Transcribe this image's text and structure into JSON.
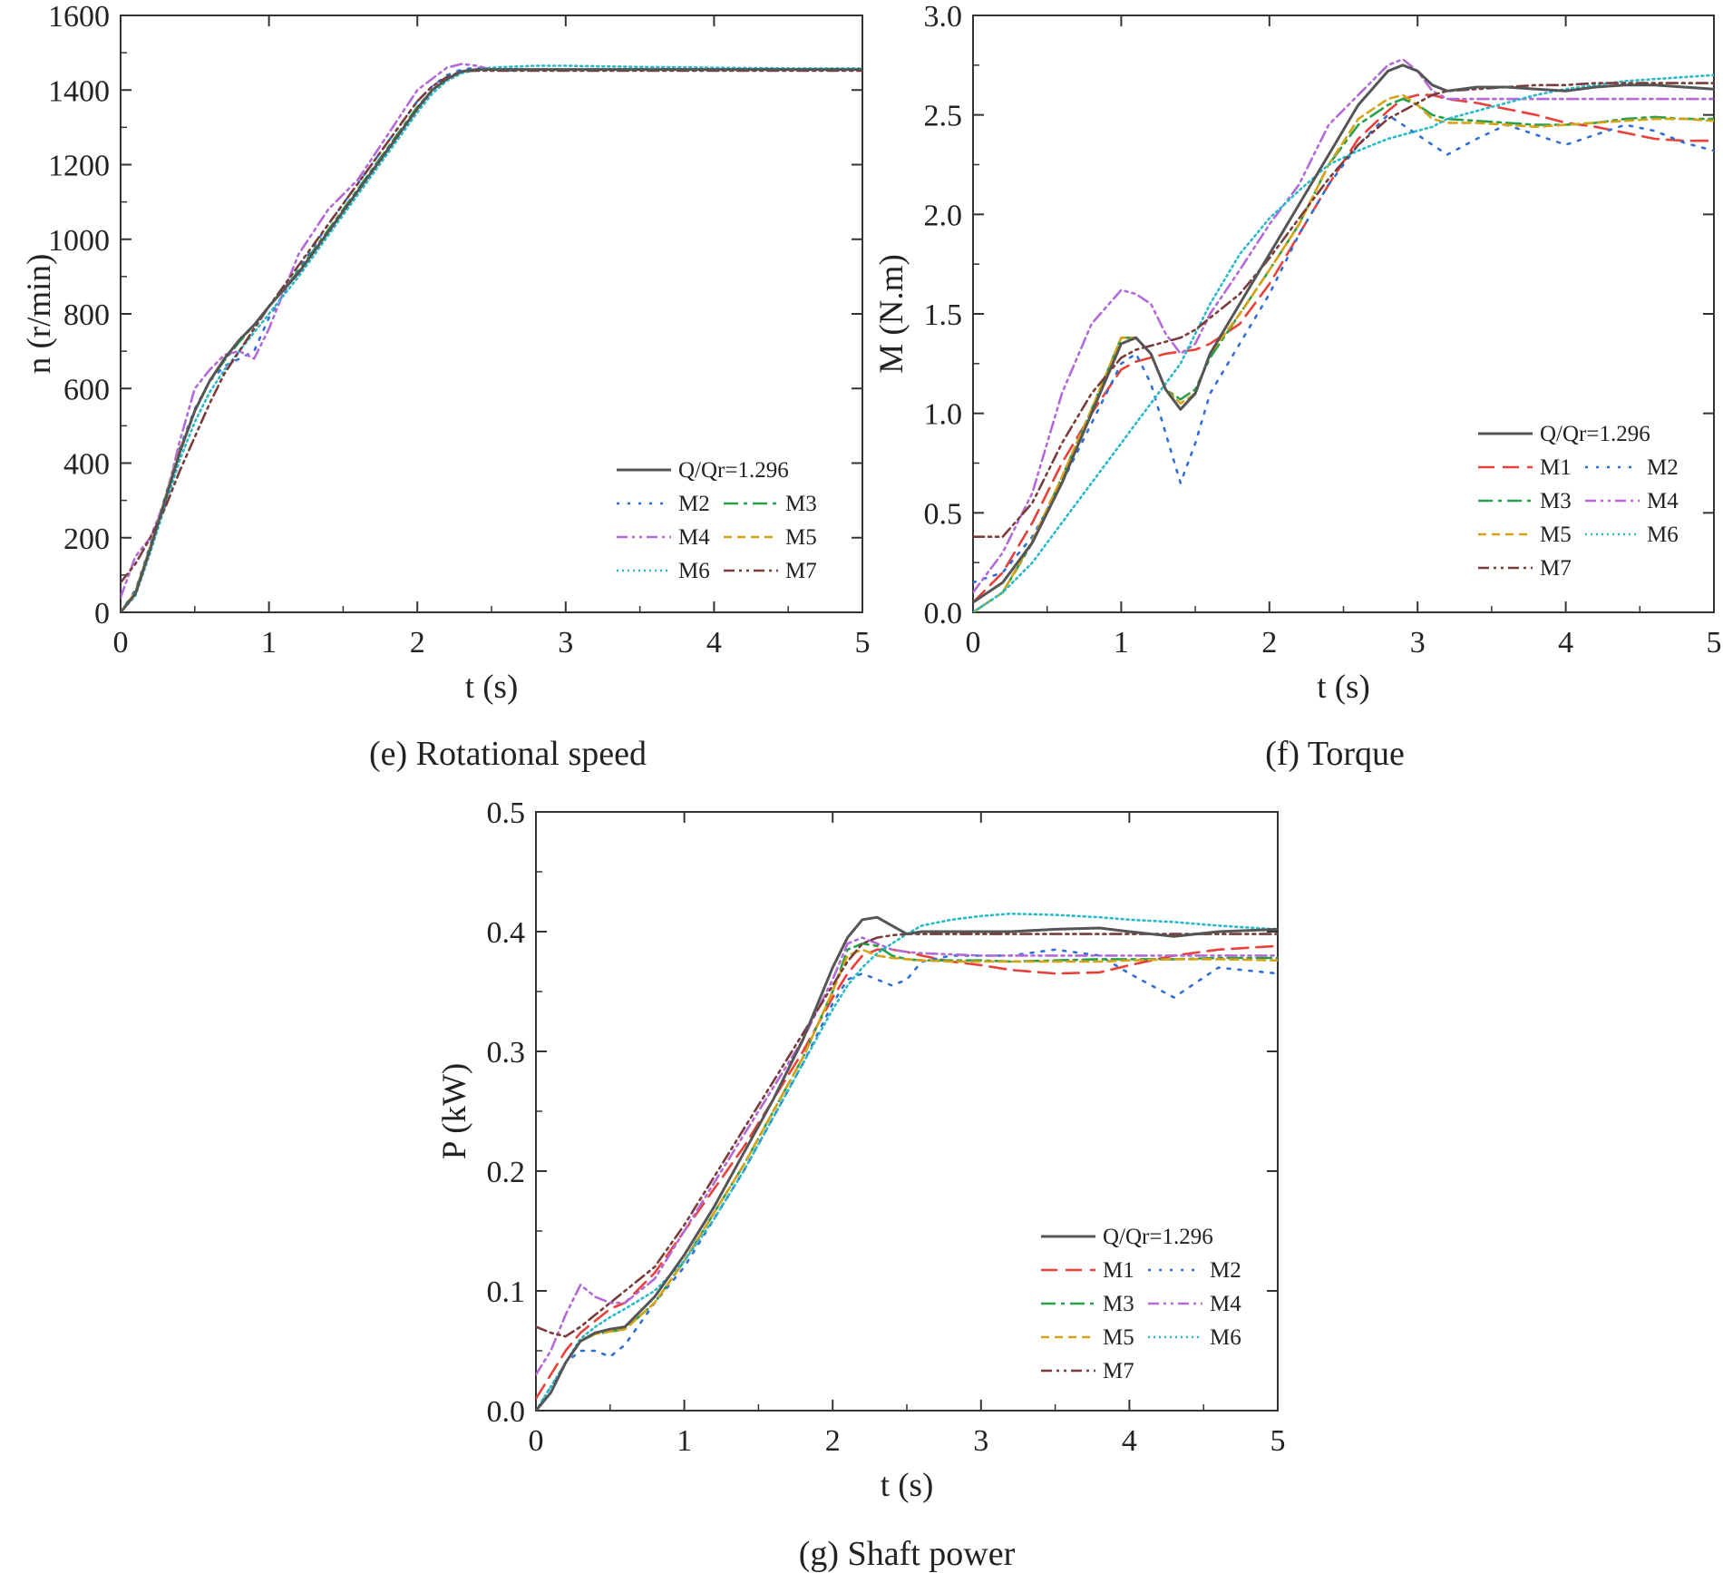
{
  "figure": {
    "captions": [
      "(e) Rotational speed",
      "(f) Torque",
      "(g) Shaft power"
    ]
  },
  "series_styles": {
    "base": {
      "label": "Q/Qr=1.296",
      "color": "#555555",
      "dash": "solid"
    },
    "M1": {
      "label": "M1",
      "color": "#e8403a",
      "dash": "long-dash"
    },
    "M2": {
      "label": "M2",
      "color": "#2f6fd6",
      "dash": "dot"
    },
    "M3": {
      "label": "M3",
      "color": "#27a04a",
      "dash": "dash-dot"
    },
    "M4": {
      "label": "M4",
      "color": "#b36ad8",
      "dash": "dash-dot-dot"
    },
    "M5": {
      "label": "M5",
      "color": "#d6a317",
      "dash": "short-dash"
    },
    "M6": {
      "label": "M6",
      "color": "#2ab9c9",
      "dash": "fine-dot"
    },
    "M7": {
      "label": "M7",
      "color": "#7a3b3b",
      "dash": "dash-dot-dot"
    }
  },
  "chart_data": [
    {
      "id": "speed",
      "type": "line",
      "caption": "(e) Rotational speed",
      "xlabel": "t (s)",
      "ylabel": "n (r/min)",
      "xlim": [
        0,
        5
      ],
      "ylim": [
        0,
        1600
      ],
      "xticks": [
        0,
        1,
        2,
        3,
        4,
        5
      ],
      "yticks": [
        0,
        200,
        400,
        600,
        800,
        1000,
        1200,
        1400,
        1600
      ],
      "legend_position": "bottom-right",
      "legend": [
        "base",
        "M2",
        "M3",
        "M4",
        "M5",
        "M6",
        "M7"
      ],
      "x": [
        0,
        0.1,
        0.2,
        0.3,
        0.4,
        0.5,
        0.6,
        0.7,
        0.8,
        0.9,
        1.0,
        1.2,
        1.4,
        1.6,
        1.8,
        2.0,
        2.1,
        2.2,
        2.3,
        2.4,
        2.5,
        2.6,
        2.8,
        3.0,
        3.5,
        4.0,
        4.5,
        5.0
      ],
      "series": [
        {
          "key": "base",
          "name": "Q/Qr=1.296",
          "values": [
            0,
            50,
            170,
            300,
            430,
            540,
            620,
            680,
            730,
            770,
            820,
            910,
            1020,
            1130,
            1240,
            1350,
            1400,
            1430,
            1450,
            1455,
            1455,
            1455,
            1455,
            1455,
            1455,
            1455,
            1455,
            1455
          ]
        },
        {
          "key": "M2",
          "name": "M2",
          "values": [
            0,
            60,
            180,
            310,
            440,
            545,
            620,
            660,
            680,
            700,
            790,
            920,
            1040,
            1150,
            1260,
            1370,
            1410,
            1440,
            1455,
            1460,
            1455,
            1452,
            1455,
            1455,
            1455,
            1455,
            1455,
            1455
          ]
        },
        {
          "key": "M3",
          "name": "M3",
          "values": [
            0,
            55,
            175,
            305,
            435,
            540,
            620,
            675,
            725,
            770,
            820,
            915,
            1025,
            1135,
            1245,
            1355,
            1400,
            1430,
            1450,
            1455,
            1455,
            1455,
            1455,
            1455,
            1455,
            1455,
            1455,
            1455
          ]
        },
        {
          "key": "M4",
          "name": "M4",
          "values": [
            40,
            150,
            200,
            300,
            460,
            600,
            650,
            690,
            700,
            680,
            760,
            960,
            1080,
            1160,
            1280,
            1400,
            1430,
            1460,
            1470,
            1465,
            1455,
            1455,
            1455,
            1455,
            1455,
            1455,
            1455,
            1455
          ]
        },
        {
          "key": "M5",
          "name": "M5",
          "values": [
            0,
            55,
            175,
            305,
            435,
            540,
            620,
            680,
            730,
            770,
            820,
            910,
            1020,
            1130,
            1240,
            1350,
            1400,
            1430,
            1450,
            1455,
            1455,
            1455,
            1455,
            1455,
            1455,
            1455,
            1455,
            1455
          ]
        },
        {
          "key": "M6",
          "name": "M6",
          "values": [
            0,
            45,
            160,
            285,
            410,
            510,
            590,
            650,
            700,
            750,
            800,
            900,
            1010,
            1120,
            1230,
            1340,
            1390,
            1425,
            1445,
            1455,
            1460,
            1462,
            1465,
            1465,
            1462,
            1460,
            1458,
            1458
          ]
        },
        {
          "key": "M7",
          "name": "M7",
          "values": [
            80,
            130,
            200,
            280,
            380,
            470,
            560,
            640,
            700,
            760,
            820,
            930,
            1040,
            1150,
            1260,
            1370,
            1410,
            1435,
            1450,
            1452,
            1452,
            1452,
            1452,
            1452,
            1452,
            1452,
            1452,
            1452
          ]
        }
      ]
    },
    {
      "id": "torque",
      "type": "line",
      "caption": "(f) Torque",
      "xlabel": "t (s)",
      "ylabel": "M (N.m)",
      "xlim": [
        0,
        5
      ],
      "ylim": [
        0,
        3.0
      ],
      "xticks": [
        0,
        1,
        2,
        3,
        4,
        5
      ],
      "yticks": [
        0.0,
        0.5,
        1.0,
        1.5,
        2.0,
        2.5,
        3.0
      ],
      "legend_position": "right",
      "legend": [
        "base",
        "M1",
        "M2",
        "M3",
        "M4",
        "M5",
        "M6",
        "M7"
      ],
      "x": [
        0,
        0.2,
        0.4,
        0.6,
        0.8,
        1.0,
        1.1,
        1.2,
        1.3,
        1.4,
        1.5,
        1.6,
        1.8,
        2.0,
        2.2,
        2.4,
        2.6,
        2.8,
        2.9,
        3.0,
        3.1,
        3.2,
        3.4,
        3.6,
        3.8,
        4.0,
        4.2,
        4.4,
        4.6,
        4.8,
        5.0
      ],
      "series": [
        {
          "key": "base",
          "name": "Q/Qr=1.296",
          "values": [
            0.05,
            0.15,
            0.35,
            0.65,
            1.0,
            1.35,
            1.38,
            1.3,
            1.12,
            1.02,
            1.1,
            1.3,
            1.55,
            1.8,
            2.05,
            2.3,
            2.55,
            2.72,
            2.75,
            2.72,
            2.65,
            2.62,
            2.64,
            2.64,
            2.63,
            2.62,
            2.64,
            2.65,
            2.65,
            2.64,
            2.63
          ]
        },
        {
          "key": "M1",
          "name": "M1",
          "values": [
            0.05,
            0.2,
            0.45,
            0.75,
            1.0,
            1.22,
            1.26,
            1.28,
            1.3,
            1.31,
            1.32,
            1.35,
            1.45,
            1.65,
            1.9,
            2.15,
            2.38,
            2.52,
            2.58,
            2.6,
            2.6,
            2.58,
            2.56,
            2.53,
            2.5,
            2.46,
            2.44,
            2.41,
            2.38,
            2.37,
            2.37
          ]
        },
        {
          "key": "M2",
          "name": "M2",
          "values": [
            0.15,
            0.2,
            0.38,
            0.65,
            0.95,
            1.25,
            1.3,
            1.15,
            0.9,
            0.65,
            0.85,
            1.1,
            1.35,
            1.6,
            1.9,
            2.15,
            2.35,
            2.5,
            2.45,
            2.4,
            2.35,
            2.3,
            2.38,
            2.45,
            2.4,
            2.35,
            2.4,
            2.45,
            2.42,
            2.36,
            2.32
          ]
        },
        {
          "key": "M3",
          "name": "M3",
          "values": [
            0.0,
            0.1,
            0.35,
            0.68,
            1.02,
            1.38,
            1.38,
            1.3,
            1.12,
            1.07,
            1.12,
            1.28,
            1.5,
            1.72,
            1.95,
            2.25,
            2.45,
            2.55,
            2.58,
            2.55,
            2.5,
            2.48,
            2.47,
            2.46,
            2.45,
            2.45,
            2.46,
            2.48,
            2.49,
            2.48,
            2.48
          ]
        },
        {
          "key": "M4",
          "name": "M4",
          "values": [
            0.1,
            0.3,
            0.6,
            1.1,
            1.45,
            1.62,
            1.6,
            1.55,
            1.4,
            1.3,
            1.35,
            1.5,
            1.72,
            1.95,
            2.15,
            2.45,
            2.6,
            2.75,
            2.78,
            2.72,
            2.62,
            2.58,
            2.58,
            2.58,
            2.58,
            2.58,
            2.58,
            2.58,
            2.58,
            2.58,
            2.58
          ]
        },
        {
          "key": "M5",
          "name": "M5",
          "values": [
            0.0,
            0.1,
            0.36,
            0.68,
            1.02,
            1.38,
            1.38,
            1.3,
            1.12,
            1.05,
            1.1,
            1.3,
            1.5,
            1.72,
            1.95,
            2.25,
            2.48,
            2.58,
            2.6,
            2.55,
            2.48,
            2.46,
            2.46,
            2.45,
            2.44,
            2.45,
            2.46,
            2.47,
            2.48,
            2.48,
            2.47
          ]
        },
        {
          "key": "M6",
          "name": "M6",
          "values": [
            0.0,
            0.1,
            0.25,
            0.45,
            0.65,
            0.85,
            0.95,
            1.05,
            1.15,
            1.25,
            1.4,
            1.55,
            1.8,
            1.98,
            2.12,
            2.25,
            2.32,
            2.38,
            2.4,
            2.42,
            2.44,
            2.48,
            2.52,
            2.56,
            2.6,
            2.63,
            2.65,
            2.67,
            2.68,
            2.69,
            2.7
          ]
        },
        {
          "key": "M7",
          "name": "M7",
          "values": [
            0.38,
            0.38,
            0.55,
            0.85,
            1.1,
            1.28,
            1.32,
            1.34,
            1.36,
            1.38,
            1.42,
            1.48,
            1.6,
            1.78,
            1.98,
            2.18,
            2.35,
            2.48,
            2.52,
            2.56,
            2.6,
            2.62,
            2.63,
            2.64,
            2.65,
            2.65,
            2.66,
            2.66,
            2.66,
            2.66,
            2.66
          ]
        }
      ]
    },
    {
      "id": "power",
      "type": "line",
      "caption": "(g) Shaft power",
      "xlabel": "t (s)",
      "ylabel": "P (kW)",
      "xlim": [
        0,
        5
      ],
      "ylim": [
        0,
        0.5
      ],
      "xticks": [
        0,
        1,
        2,
        3,
        4,
        5
      ],
      "yticks": [
        0.0,
        0.1,
        0.2,
        0.3,
        0.4,
        0.5
      ],
      "legend_position": "bottom-right",
      "legend": [
        "base",
        "M1",
        "M2",
        "M3",
        "M4",
        "M5",
        "M6",
        "M7"
      ],
      "x": [
        0,
        0.1,
        0.2,
        0.3,
        0.4,
        0.5,
        0.6,
        0.8,
        1.0,
        1.2,
        1.4,
        1.6,
        1.8,
        2.0,
        2.1,
        2.2,
        2.3,
        2.4,
        2.5,
        2.6,
        2.8,
        3.0,
        3.2,
        3.5,
        3.8,
        4.0,
        4.3,
        4.6,
        5.0
      ],
      "series": [
        {
          "key": "base",
          "name": "Q/Qr=1.296",
          "values": [
            0.0,
            0.015,
            0.04,
            0.058,
            0.065,
            0.068,
            0.07,
            0.095,
            0.13,
            0.17,
            0.215,
            0.26,
            0.31,
            0.37,
            0.395,
            0.41,
            0.412,
            0.405,
            0.398,
            0.4,
            0.4,
            0.4,
            0.4,
            0.402,
            0.403,
            0.4,
            0.396,
            0.4,
            0.402
          ]
        },
        {
          "key": "M1",
          "name": "M1",
          "values": [
            0.01,
            0.03,
            0.05,
            0.065,
            0.075,
            0.085,
            0.09,
            0.115,
            0.15,
            0.185,
            0.22,
            0.26,
            0.3,
            0.345,
            0.365,
            0.38,
            0.385,
            0.385,
            0.383,
            0.38,
            0.375,
            0.372,
            0.368,
            0.365,
            0.366,
            0.372,
            0.38,
            0.385,
            0.388
          ]
        },
        {
          "key": "M2",
          "name": "M2",
          "values": [
            0.0,
            0.02,
            0.04,
            0.05,
            0.05,
            0.045,
            0.055,
            0.09,
            0.12,
            0.16,
            0.2,
            0.245,
            0.29,
            0.34,
            0.36,
            0.365,
            0.36,
            0.355,
            0.36,
            0.375,
            0.38,
            0.38,
            0.38,
            0.385,
            0.38,
            0.365,
            0.345,
            0.37,
            0.365
          ]
        },
        {
          "key": "M3",
          "name": "M3",
          "values": [
            0.0,
            0.015,
            0.04,
            0.058,
            0.064,
            0.066,
            0.068,
            0.09,
            0.125,
            0.165,
            0.205,
            0.25,
            0.295,
            0.35,
            0.385,
            0.39,
            0.388,
            0.38,
            0.377,
            0.376,
            0.376,
            0.376,
            0.375,
            0.376,
            0.377,
            0.377,
            0.377,
            0.378,
            0.378
          ]
        },
        {
          "key": "M4",
          "name": "M4",
          "values": [
            0.03,
            0.05,
            0.08,
            0.105,
            0.095,
            0.09,
            0.09,
            0.11,
            0.15,
            0.19,
            0.23,
            0.27,
            0.31,
            0.36,
            0.39,
            0.395,
            0.39,
            0.385,
            0.383,
            0.382,
            0.381,
            0.38,
            0.38,
            0.38,
            0.38,
            0.38,
            0.38,
            0.38,
            0.38
          ]
        },
        {
          "key": "M5",
          "name": "M5",
          "values": [
            0.0,
            0.015,
            0.04,
            0.058,
            0.064,
            0.066,
            0.068,
            0.09,
            0.125,
            0.165,
            0.205,
            0.25,
            0.295,
            0.35,
            0.38,
            0.385,
            0.38,
            0.378,
            0.377,
            0.376,
            0.375,
            0.375,
            0.375,
            0.375,
            0.375,
            0.376,
            0.377,
            0.377,
            0.376
          ]
        },
        {
          "key": "M6",
          "name": "M6",
          "values": [
            0.0,
            0.02,
            0.04,
            0.06,
            0.07,
            0.078,
            0.085,
            0.1,
            0.125,
            0.16,
            0.2,
            0.245,
            0.29,
            0.335,
            0.355,
            0.37,
            0.382,
            0.39,
            0.398,
            0.405,
            0.41,
            0.413,
            0.415,
            0.414,
            0.412,
            0.41,
            0.408,
            0.405,
            0.402
          ]
        },
        {
          "key": "M7",
          "name": "M7",
          "values": [
            0.07,
            0.065,
            0.062,
            0.07,
            0.08,
            0.09,
            0.1,
            0.12,
            0.155,
            0.195,
            0.235,
            0.275,
            0.315,
            0.355,
            0.375,
            0.39,
            0.395,
            0.397,
            0.398,
            0.398,
            0.398,
            0.398,
            0.398,
            0.398,
            0.398,
            0.398,
            0.398,
            0.398,
            0.398
          ]
        }
      ]
    }
  ]
}
